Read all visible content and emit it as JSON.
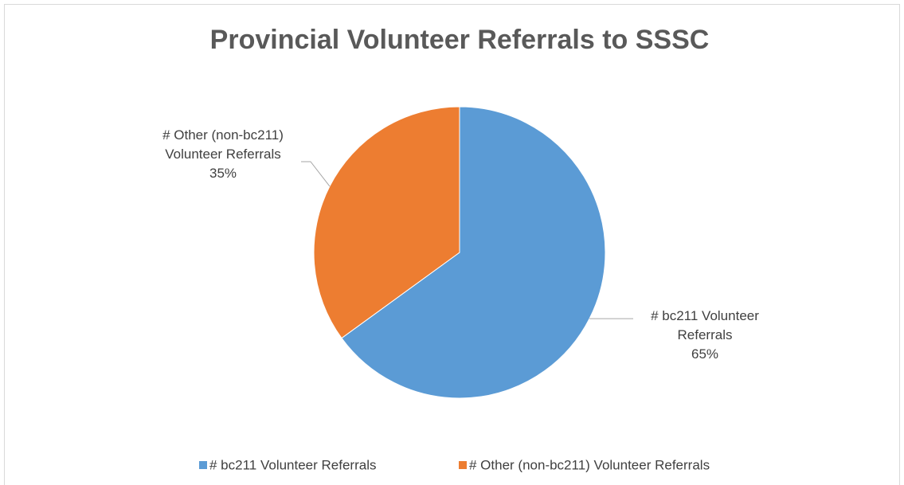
{
  "chart_data": {
    "type": "pie",
    "title": "Provincial Volunteer Referrals to SSSC",
    "categories": [
      "# bc211 Volunteer Referrals",
      "# Other (non-bc211) Volunteer Referrals"
    ],
    "values": [
      65,
      35
    ],
    "value_labels": [
      "65%",
      "35%"
    ],
    "colors": [
      "#5b9bd5",
      "#ed7d31"
    ],
    "legend": "bottom"
  }
}
